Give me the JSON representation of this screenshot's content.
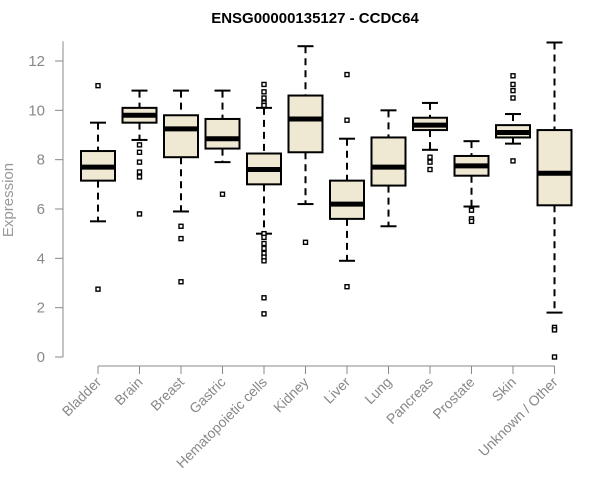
{
  "chart_data": {
    "type": "box",
    "title": "ENSG00000135127 - CCDC64",
    "xlabel": "",
    "ylabel": "Expression",
    "ylim": [
      0,
      12.8
    ],
    "yticks": [
      0,
      2,
      4,
      6,
      8,
      10,
      12
    ],
    "grid": false,
    "legend": "none",
    "box_fill": "#efe8d3",
    "categories": [
      "Bladder",
      "Brain",
      "Breast",
      "Gastric",
      "Hematopoietic cells",
      "Kidney",
      "Liver",
      "Lung",
      "Pancreas",
      "Prostate",
      "Skin",
      "Unknown / Other"
    ],
    "boxes": [
      {
        "category": "Bladder",
        "whisker_low": 5.5,
        "q1": 7.15,
        "median": 7.7,
        "q3": 8.35,
        "whisker_high": 9.5,
        "outliers": [
          11.0,
          2.75
        ]
      },
      {
        "category": "Brain",
        "whisker_low": 8.8,
        "q1": 9.5,
        "median": 9.8,
        "q3": 10.1,
        "whisker_high": 10.8,
        "outliers": [
          8.6,
          8.3,
          7.9,
          7.5,
          7.3,
          5.8
        ]
      },
      {
        "category": "Breast",
        "whisker_low": 5.9,
        "q1": 8.1,
        "median": 9.25,
        "q3": 9.8,
        "whisker_high": 10.8,
        "outliers": [
          5.3,
          4.8,
          3.05
        ]
      },
      {
        "category": "Gastric",
        "whisker_low": 7.9,
        "q1": 8.45,
        "median": 8.85,
        "q3": 9.65,
        "whisker_high": 10.8,
        "outliers": [
          6.6
        ]
      },
      {
        "category": "Hematopoietic cells",
        "whisker_low": 5.0,
        "q1": 7.0,
        "median": 7.6,
        "q3": 8.25,
        "whisker_high": 10.1,
        "outliers": [
          11.05,
          10.75,
          10.5,
          10.3,
          10.2,
          5.0,
          4.85,
          4.6,
          4.4,
          4.2,
          4.05,
          3.9,
          2.4,
          1.75
        ]
      },
      {
        "category": "Kidney",
        "whisker_low": 6.2,
        "q1": 8.3,
        "median": 9.65,
        "q3": 10.6,
        "whisker_high": 12.6,
        "outliers": [
          4.65
        ]
      },
      {
        "category": "Liver",
        "whisker_low": 3.9,
        "q1": 5.6,
        "median": 6.2,
        "q3": 7.15,
        "whisker_high": 8.85,
        "outliers": [
          11.45,
          9.6,
          2.85
        ]
      },
      {
        "category": "Lung",
        "whisker_low": 5.3,
        "q1": 6.95,
        "median": 7.7,
        "q3": 8.9,
        "whisker_high": 10.0,
        "outliers": []
      },
      {
        "category": "Pancreas",
        "whisker_low": 8.4,
        "q1": 9.2,
        "median": 9.4,
        "q3": 9.7,
        "whisker_high": 10.3,
        "outliers": [
          8.1,
          7.9,
          7.6
        ]
      },
      {
        "category": "Prostate",
        "whisker_low": 6.1,
        "q1": 7.35,
        "median": 7.75,
        "q3": 8.15,
        "whisker_high": 8.75,
        "outliers": [
          5.95,
          5.6,
          5.5
        ]
      },
      {
        "category": "Skin",
        "whisker_low": 8.65,
        "q1": 8.9,
        "median": 9.1,
        "q3": 9.4,
        "whisker_high": 9.85,
        "outliers": [
          11.4,
          11.05,
          10.8,
          10.5,
          7.95
        ]
      },
      {
        "category": "Unknown / Other",
        "whisker_low": 1.8,
        "q1": 6.15,
        "median": 7.45,
        "q3": 9.2,
        "whisker_high": 12.75,
        "outliers": [
          1.2,
          1.1,
          0.0
        ]
      }
    ]
  }
}
